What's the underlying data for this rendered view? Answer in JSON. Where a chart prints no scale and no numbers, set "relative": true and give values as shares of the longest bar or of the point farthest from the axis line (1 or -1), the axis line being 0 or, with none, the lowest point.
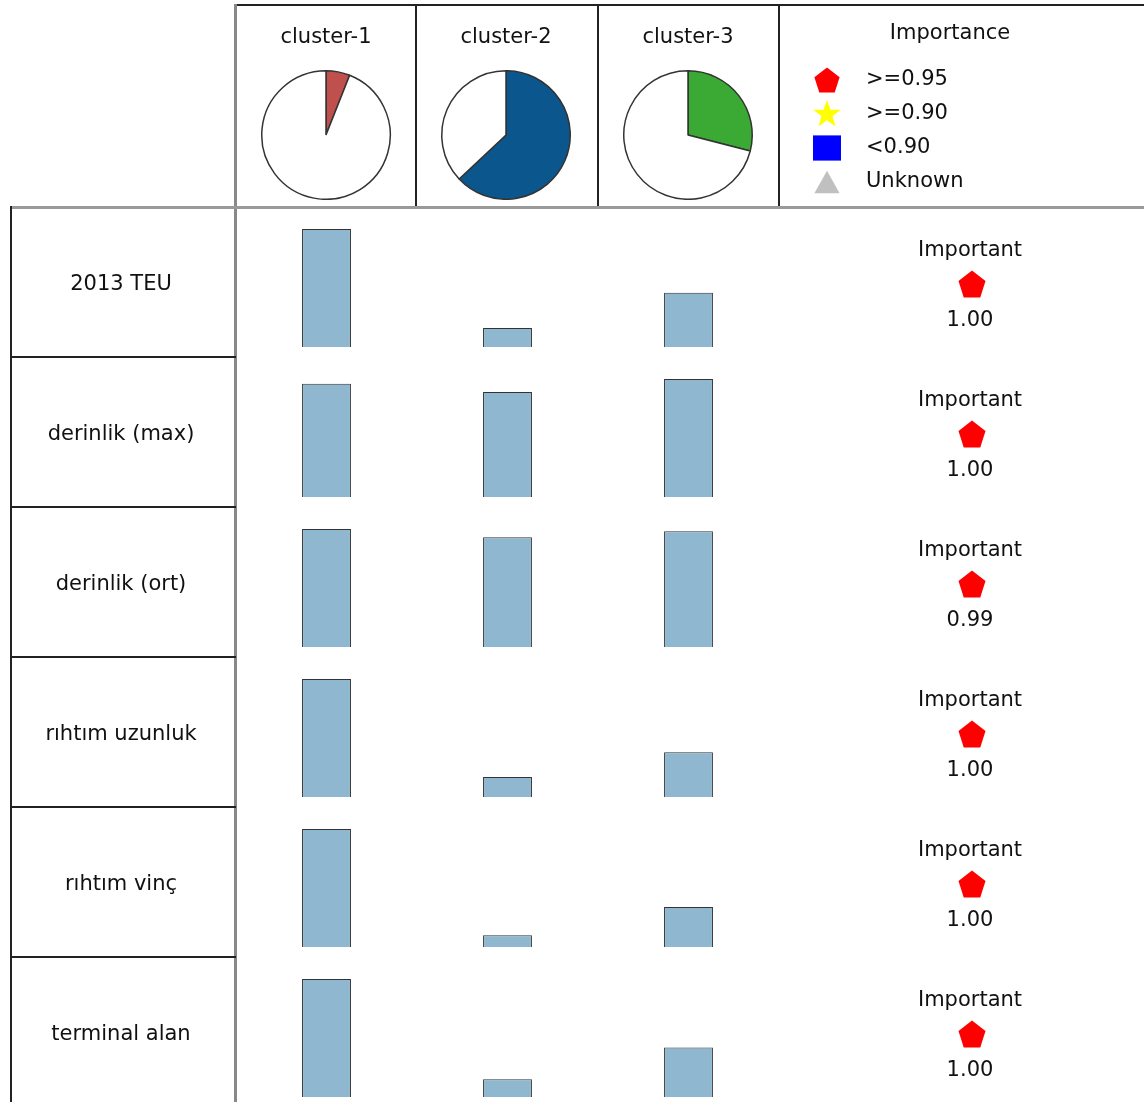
{
  "chart_data": [
    {
      "type": "pie",
      "title": "cluster-1",
      "categories": [
        null,
        null
      ],
      "values": [
        6,
        94
      ],
      "colors": [
        "#c0504d",
        "#ffffff"
      ]
    },
    {
      "type": "pie",
      "title": "cluster-2",
      "categories": [
        null,
        null
      ],
      "values": [
        63,
        37
      ],
      "colors": [
        "#0b568c",
        "#ffffff"
      ]
    },
    {
      "type": "pie",
      "title": "cluster-3",
      "categories": [
        null,
        null
      ],
      "values": [
        29,
        71
      ],
      "colors": [
        "#3aaa35",
        "#ffffff"
      ]
    },
    {
      "type": "other",
      "title": "Importance",
      "annotations": [
        ">=0.95",
        ">=0.90",
        "<0.90",
        "Unknown"
      ]
    },
    {
      "type": "bar",
      "title": "2013 TEU",
      "categories": [
        null,
        null,
        null
      ],
      "values": [
        1,
        0.16,
        0.46
      ],
      "color": "#8fb8d0",
      "relative": true,
      "annotations": [
        "Important",
        "1.00"
      ]
    },
    {
      "type": "bar",
      "title": "derinlik (max)",
      "categories": [
        null,
        null,
        null
      ],
      "values": [
        0.96,
        0.89,
        1
      ],
      "color": "#8fb8d0",
      "relative": true,
      "annotations": [
        "Important",
        "1.00"
      ]
    },
    {
      "type": "bar",
      "title": "derinlik (ort)",
      "categories": [
        null,
        null,
        null
      ],
      "values": [
        1,
        0.93,
        0.98
      ],
      "color": "#8fb8d0",
      "relative": true,
      "annotations": [
        "Important",
        "0.99"
      ]
    },
    {
      "type": "bar",
      "title": "rıhtım uzunluk",
      "categories": [
        null,
        null,
        null
      ],
      "values": [
        1,
        0.17,
        0.38
      ],
      "color": "#8fb8d0",
      "relative": true,
      "annotations": [
        "Important",
        "1.00"
      ]
    },
    {
      "type": "bar",
      "title": "rıhtım vinç",
      "categories": [
        null,
        null,
        null
      ],
      "values": [
        1,
        0.1,
        0.34
      ],
      "color": "#8fb8d0",
      "relative": true,
      "annotations": [
        "Important",
        "1.00"
      ]
    },
    {
      "type": "bar",
      "title": "terminal alan",
      "categories": [
        null,
        null,
        null
      ],
      "values": [
        1,
        0.15,
        0.42
      ],
      "color": "#8fb8d0",
      "relative": true,
      "annotations": [
        "Important",
        "1.00"
      ]
    }
  ]
}
